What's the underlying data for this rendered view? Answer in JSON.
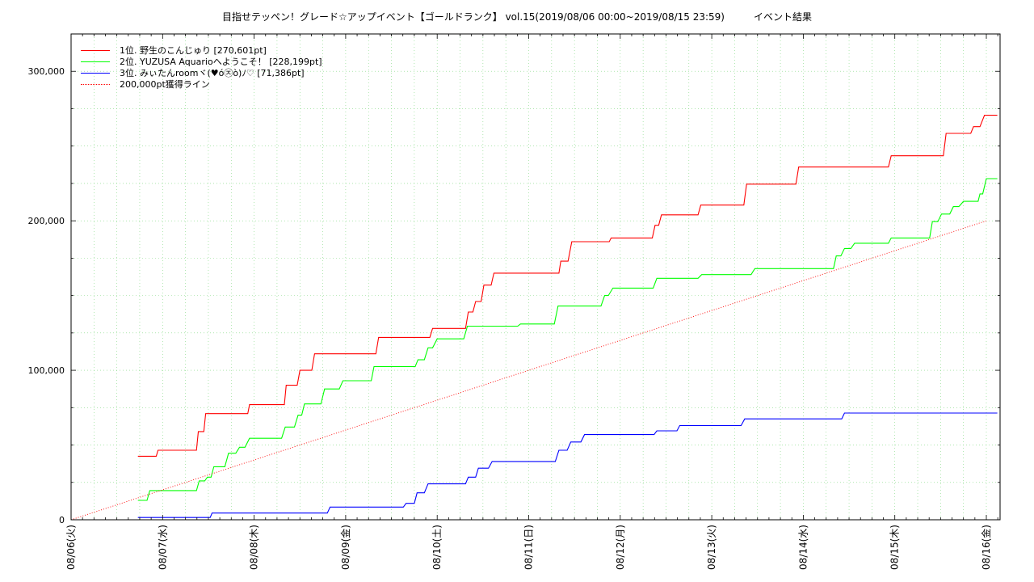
{
  "chart_data": {
    "type": "line",
    "title": "目指せテッペン！グレード☆アップイベント【ゴールドランク】 vol.15(2019/08/06 00:00~2019/08/15 23:59)　　　イベント結果",
    "xlabel": "",
    "ylabel": "",
    "x_unit": "days from 08/06 00:00",
    "xlim": [
      0,
      10.15
    ],
    "ylim": [
      0,
      325000
    ],
    "grid": true,
    "legend_position": "top-left",
    "x_ticks": [
      {
        "x": 0,
        "label": "08/06(火)"
      },
      {
        "x": 1,
        "label": "08/07(水)"
      },
      {
        "x": 2,
        "label": "08/08(木)"
      },
      {
        "x": 3,
        "label": "08/09(金)"
      },
      {
        "x": 4,
        "label": "08/10(土)"
      },
      {
        "x": 5,
        "label": "08/11(日)"
      },
      {
        "x": 6,
        "label": "08/12(月)"
      },
      {
        "x": 7,
        "label": "08/13(火)"
      },
      {
        "x": 8,
        "label": "08/14(水)"
      },
      {
        "x": 9,
        "label": "08/15(木)"
      },
      {
        "x": 10,
        "label": "08/16(金)"
      }
    ],
    "y_ticks": [
      {
        "y": 0,
        "label": "0"
      },
      {
        "y": 100000,
        "label": "100,000"
      },
      {
        "y": 200000,
        "label": "200,000"
      },
      {
        "y": 300000,
        "label": "300,000"
      }
    ],
    "series": [
      {
        "name": "1位. 野生のこんじゅり [270,601pt]",
        "color": "#ff0000",
        "style": "solid",
        "points": [
          [
            0.73,
            42500
          ],
          [
            0.93,
            42500
          ],
          [
            0.95,
            46500
          ],
          [
            1.37,
            46500
          ],
          [
            1.39,
            59000
          ],
          [
            1.45,
            59000
          ],
          [
            1.47,
            71000
          ],
          [
            1.93,
            71000
          ],
          [
            1.95,
            77000
          ],
          [
            2.33,
            77000
          ],
          [
            2.35,
            90000
          ],
          [
            2.47,
            90000
          ],
          [
            2.5,
            100000
          ],
          [
            2.63,
            100000
          ],
          [
            2.66,
            111000
          ],
          [
            3.33,
            111000
          ],
          [
            3.36,
            122000
          ],
          [
            3.92,
            122000
          ],
          [
            3.95,
            128000
          ],
          [
            4.31,
            128000
          ],
          [
            4.34,
            139000
          ],
          [
            4.39,
            139000
          ],
          [
            4.42,
            146000
          ],
          [
            4.48,
            146000
          ],
          [
            4.51,
            157000
          ],
          [
            4.59,
            157000
          ],
          [
            4.62,
            165000
          ],
          [
            5.33,
            165000
          ],
          [
            5.35,
            173000
          ],
          [
            5.43,
            173000
          ],
          [
            5.47,
            186000
          ],
          [
            5.88,
            186000
          ],
          [
            5.9,
            188500
          ],
          [
            6.35,
            188500
          ],
          [
            6.38,
            197000
          ],
          [
            6.42,
            197000
          ],
          [
            6.45,
            204000
          ],
          [
            6.85,
            204000
          ],
          [
            6.88,
            210500
          ],
          [
            7.35,
            210500
          ],
          [
            7.38,
            224500
          ],
          [
            7.92,
            224500
          ],
          [
            7.95,
            236000
          ],
          [
            8.93,
            236000
          ],
          [
            8.96,
            243500
          ],
          [
            9.53,
            243500
          ],
          [
            9.56,
            258500
          ],
          [
            9.83,
            258500
          ],
          [
            9.86,
            263000
          ],
          [
            9.93,
            263000
          ],
          [
            9.98,
            270601
          ],
          [
            10.12,
            270601
          ]
        ]
      },
      {
        "name": "2位. YUZUSA Aquarioへようこそ！ [228,199pt]",
        "color": "#00ff00",
        "style": "solid",
        "points": [
          [
            0.73,
            13000
          ],
          [
            0.83,
            13000
          ],
          [
            0.86,
            19500
          ],
          [
            1.37,
            19500
          ],
          [
            1.4,
            26000
          ],
          [
            1.46,
            26000
          ],
          [
            1.49,
            28500
          ],
          [
            1.53,
            28500
          ],
          [
            1.56,
            35500
          ],
          [
            1.68,
            35500
          ],
          [
            1.72,
            44500
          ],
          [
            1.8,
            44500
          ],
          [
            1.84,
            48500
          ],
          [
            1.9,
            48500
          ],
          [
            1.95,
            54500
          ],
          [
            2.3,
            54500
          ],
          [
            2.34,
            62000
          ],
          [
            2.44,
            62000
          ],
          [
            2.48,
            70000
          ],
          [
            2.52,
            70000
          ],
          [
            2.55,
            77500
          ],
          [
            2.73,
            77500
          ],
          [
            2.77,
            87500
          ],
          [
            2.93,
            87500
          ],
          [
            2.97,
            93000
          ],
          [
            3.28,
            93000
          ],
          [
            3.31,
            102500
          ],
          [
            3.76,
            102500
          ],
          [
            3.79,
            107000
          ],
          [
            3.86,
            107000
          ],
          [
            3.9,
            115000
          ],
          [
            3.95,
            115000
          ],
          [
            4.0,
            121000
          ],
          [
            4.29,
            121000
          ],
          [
            4.33,
            129500
          ],
          [
            4.88,
            129500
          ],
          [
            4.91,
            131000
          ],
          [
            5.28,
            131000
          ],
          [
            5.32,
            143000
          ],
          [
            5.79,
            143000
          ],
          [
            5.83,
            150000
          ],
          [
            5.87,
            150000
          ],
          [
            5.92,
            155000
          ],
          [
            6.36,
            155000
          ],
          [
            6.4,
            161500
          ],
          [
            6.85,
            161500
          ],
          [
            6.89,
            164000
          ],
          [
            7.43,
            164000
          ],
          [
            7.47,
            168000
          ],
          [
            8.33,
            168000
          ],
          [
            8.36,
            176500
          ],
          [
            8.41,
            176500
          ],
          [
            8.45,
            181500
          ],
          [
            8.52,
            181500
          ],
          [
            8.56,
            185000
          ],
          [
            8.93,
            185000
          ],
          [
            8.96,
            188500
          ],
          [
            9.38,
            188500
          ],
          [
            9.41,
            199500
          ],
          [
            9.47,
            199500
          ],
          [
            9.51,
            204500
          ],
          [
            9.6,
            204500
          ],
          [
            9.64,
            209500
          ],
          [
            9.7,
            209500
          ],
          [
            9.75,
            213000
          ],
          [
            9.91,
            213000
          ],
          [
            9.93,
            218000
          ],
          [
            9.96,
            218000
          ],
          [
            10.0,
            228199
          ],
          [
            10.12,
            228199
          ]
        ]
      },
      {
        "name": "3位. みぃたんroomヾ(♥ó㉨ò)ﾉ♡ [71,386pt]",
        "color": "#0000ff",
        "style": "solid",
        "points": [
          [
            0.73,
            1500
          ],
          [
            1.52,
            1500
          ],
          [
            1.54,
            4500
          ],
          [
            2.8,
            4500
          ],
          [
            2.83,
            8500
          ],
          [
            3.63,
            8500
          ],
          [
            3.66,
            11000
          ],
          [
            3.75,
            11000
          ],
          [
            3.78,
            18000
          ],
          [
            3.86,
            18000
          ],
          [
            3.9,
            24000
          ],
          [
            4.31,
            24000
          ],
          [
            4.34,
            28500
          ],
          [
            4.42,
            28500
          ],
          [
            4.45,
            34500
          ],
          [
            4.56,
            34500
          ],
          [
            4.6,
            39000
          ],
          [
            5.29,
            39000
          ],
          [
            5.33,
            46500
          ],
          [
            5.42,
            46500
          ],
          [
            5.46,
            52000
          ],
          [
            5.57,
            52000
          ],
          [
            5.61,
            57000
          ],
          [
            6.37,
            57000
          ],
          [
            6.4,
            59500
          ],
          [
            6.62,
            59500
          ],
          [
            6.65,
            63000
          ],
          [
            7.32,
            63000
          ],
          [
            7.36,
            67500
          ],
          [
            8.42,
            67500
          ],
          [
            8.45,
            71386
          ],
          [
            10.12,
            71386
          ]
        ]
      },
      {
        "name": "200,000pt獲得ライン",
        "color": "#ff0000",
        "style": "dotted",
        "points": [
          [
            0,
            0
          ],
          [
            10,
            200000
          ]
        ]
      }
    ]
  }
}
